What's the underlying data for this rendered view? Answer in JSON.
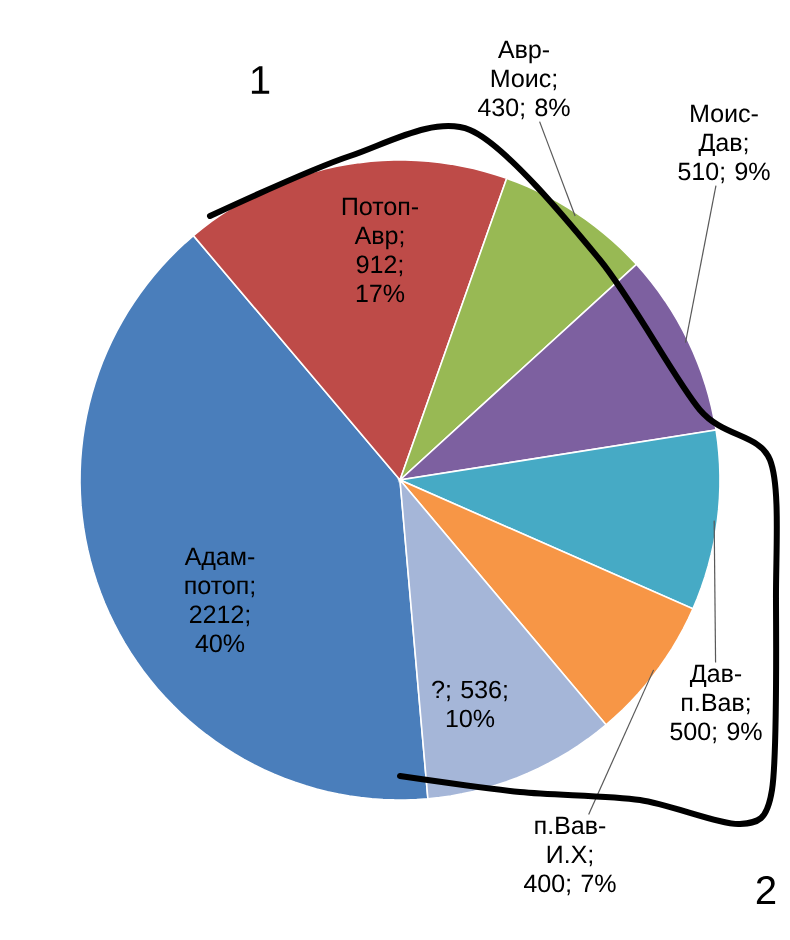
{
  "chart_data": {
    "type": "pie",
    "categories": [
      "Адам-потоп",
      "Потоп-Авр",
      "Авр-Моис",
      "Моис-Дав",
      "Дав-п.Вав",
      "п.Вав-И.Х",
      "?"
    ],
    "values": [
      2212,
      912,
      430,
      510,
      500,
      400,
      536
    ],
    "colors": [
      "#4a7ebb",
      "#be4b48",
      "#98b954",
      "#7d60a0",
      "#46aac5",
      "#f79646",
      "#a5b6d8"
    ],
    "value_labels": [
      "; 2212; 40%",
      "; 912; 17%",
      "; 430; 8%",
      "; 510; 9%",
      "; 500; 9%",
      "; 400; 7%",
      "; 536; 10%"
    ],
    "annotations": [
      "1",
      "2"
    ]
  }
}
